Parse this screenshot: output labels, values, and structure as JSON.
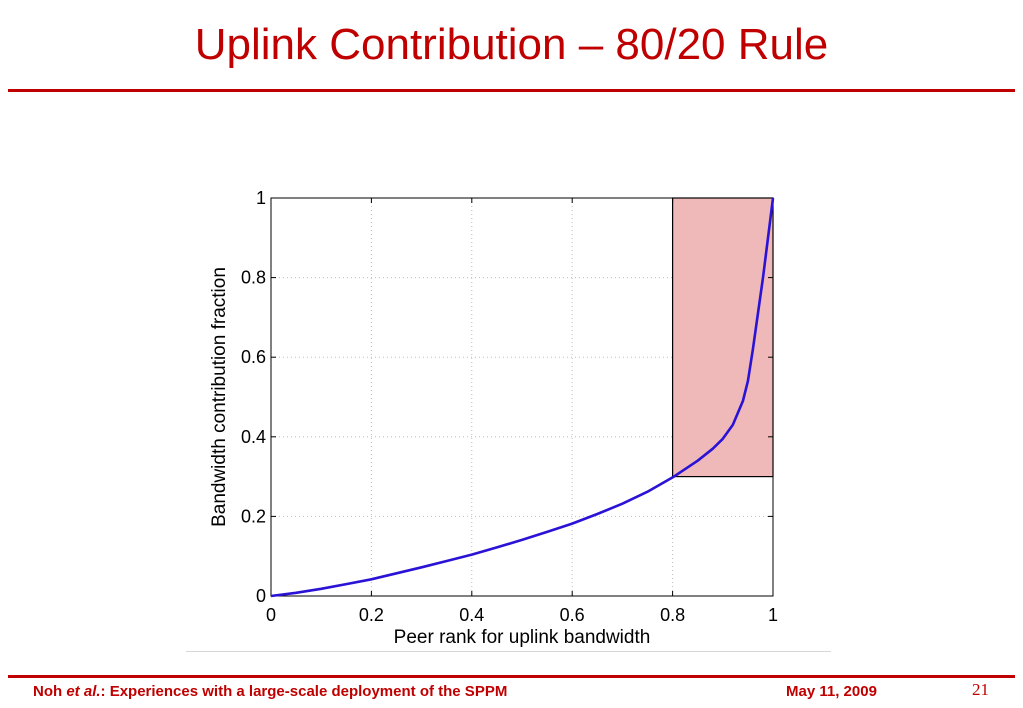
{
  "slide": {
    "title": "Uplink Contribution – 80/20 Rule",
    "footer": {
      "author": "Noh",
      "etal": "et al.",
      "rest": ": Experiences with a large-scale deployment of the SPPM",
      "date": "May 11, 2009",
      "page": "21"
    }
  },
  "colors": {
    "title": "#c00000",
    "curve": "#2a12d6",
    "highlight_fill": "#efb9b9",
    "highlight_stroke": "#000000",
    "grid": "#bdbdbd"
  },
  "chart_data": {
    "type": "line",
    "title": "",
    "xlabel": "Peer rank for uplink bandwidth",
    "ylabel": "Bandwidth contribution fraction",
    "xlim": [
      0,
      1
    ],
    "ylim": [
      0,
      1
    ],
    "xticks": [
      "0",
      "0.2",
      "0.4",
      "0.6",
      "0.8",
      "1"
    ],
    "yticks": [
      "0",
      "0.2",
      "0.4",
      "0.6",
      "0.8",
      "1"
    ],
    "grid": true,
    "series": [
      {
        "x": [
          0,
          0.05,
          0.1,
          0.15,
          0.2,
          0.25,
          0.3,
          0.35,
          0.4,
          0.45,
          0.5,
          0.55,
          0.6,
          0.65,
          0.7,
          0.75,
          0.8,
          0.85,
          0.88,
          0.9,
          0.92,
          0.94,
          0.95,
          0.96,
          0.98,
          1.0
        ],
        "y": [
          0,
          0.008,
          0.018,
          0.03,
          0.042,
          0.057,
          0.072,
          0.088,
          0.104,
          0.122,
          0.141,
          0.161,
          0.182,
          0.206,
          0.232,
          0.262,
          0.298,
          0.34,
          0.37,
          0.395,
          0.43,
          0.49,
          0.54,
          0.62,
          0.8,
          1.0
        ]
      }
    ],
    "highlight_region": {
      "x": [
        0.8,
        1.0
      ],
      "y": [
        0.3,
        1.0
      ]
    }
  }
}
